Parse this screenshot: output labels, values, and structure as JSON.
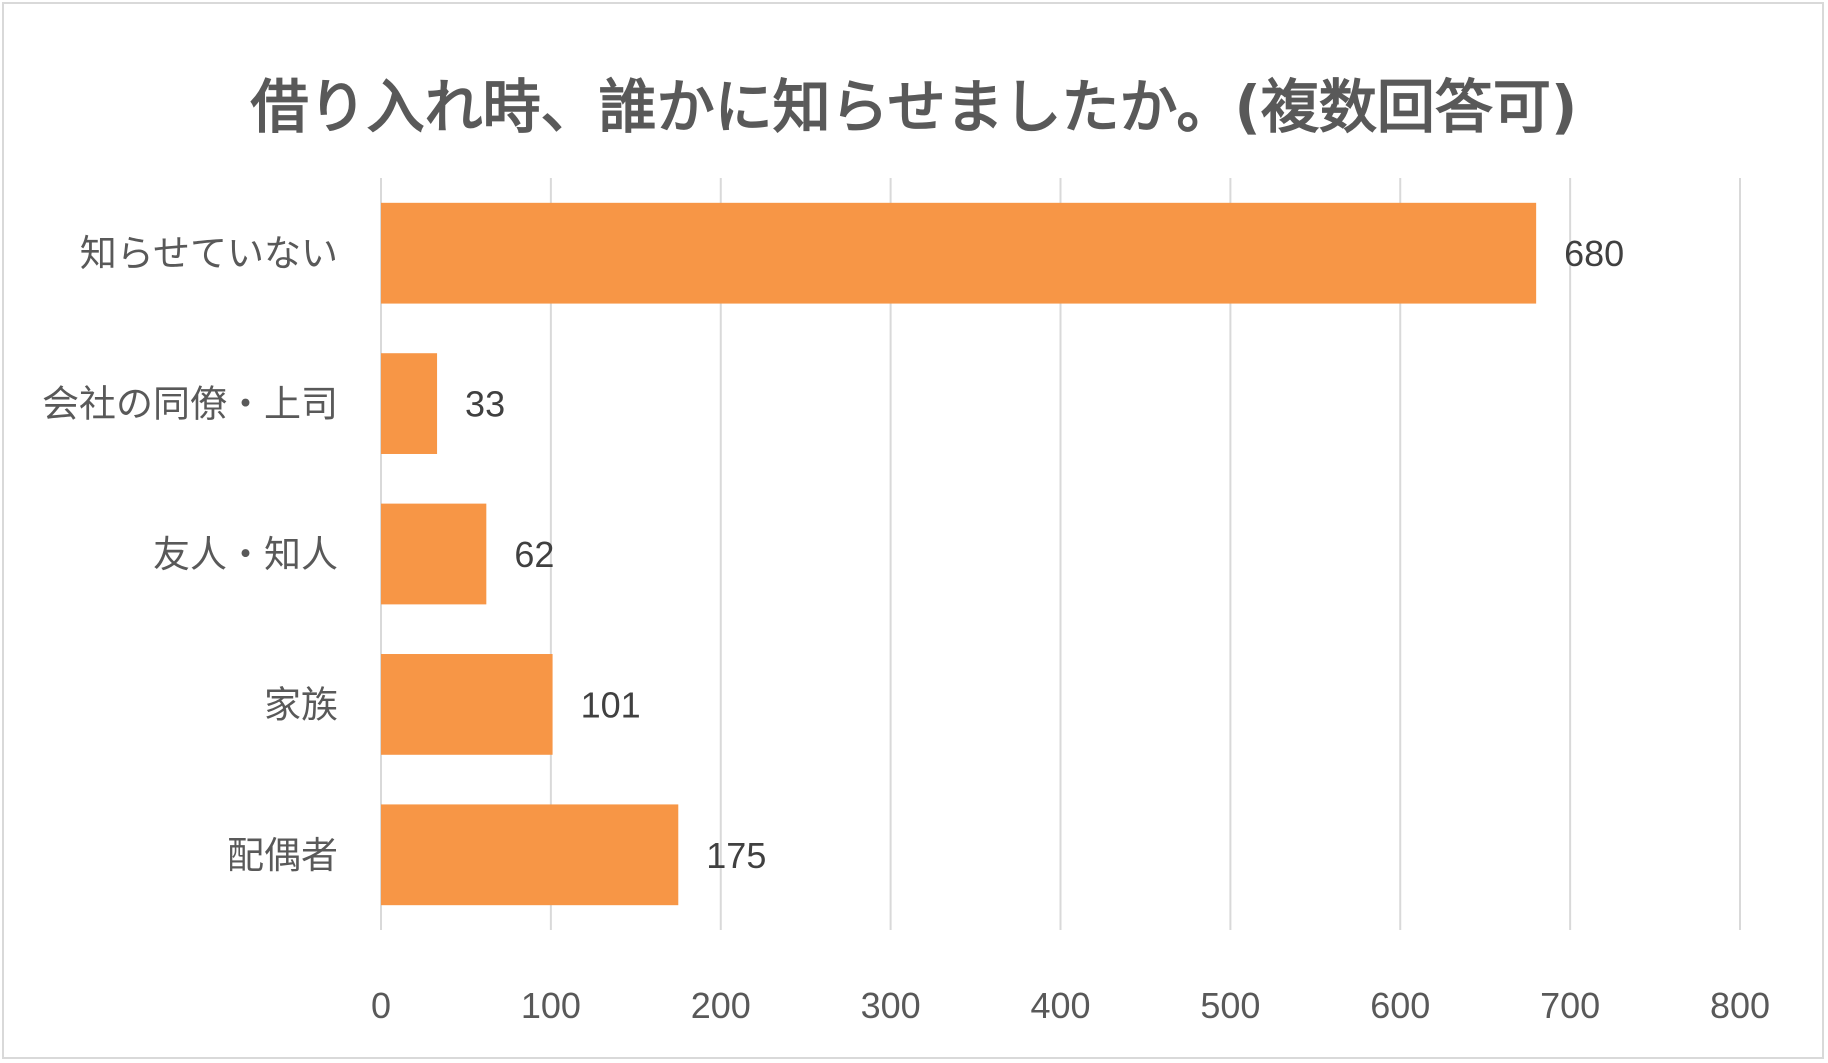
{
  "chart_data": {
    "type": "bar",
    "orientation": "horizontal",
    "title": "借り入れ時、誰かに知らせましたか。(複数回答可)",
    "categories": [
      "知らせていない",
      "会社の同僚・上司",
      "友人・知人",
      "家族",
      "配偶者"
    ],
    "values": [
      680,
      33,
      62,
      101,
      175
    ],
    "xlim": [
      0,
      800
    ],
    "x_ticks": [
      "0",
      "100",
      "200",
      "300",
      "400",
      "500",
      "600",
      "700",
      "800"
    ],
    "grid": true,
    "bar_color": "#F79646",
    "gridline_color": "#d9d9d9",
    "data_labels": true,
    "legend": "none"
  }
}
